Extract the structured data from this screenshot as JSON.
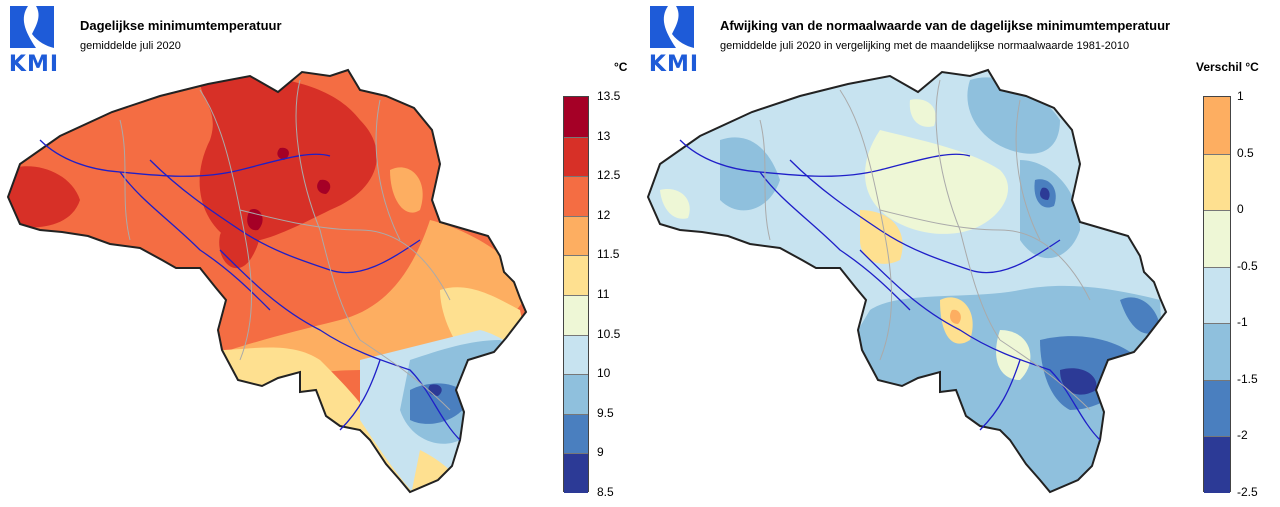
{
  "brand": {
    "logo_text": "KMI",
    "logo_color": "#1e5bd8"
  },
  "left_panel": {
    "title": "Dagelijkse minimumtemperatuur",
    "subtitle": "gemiddelde juli 2020",
    "unit": "°C",
    "legend": {
      "ticks": [
        "13.5",
        "13",
        "12.5",
        "12",
        "11.5",
        "11",
        "10.5",
        "10",
        "9.5",
        "9",
        "8.5"
      ],
      "colors": [
        "#a50026",
        "#d73027",
        "#f46d43",
        "#fdae61",
        "#fee090",
        "#eef7d6",
        "#c7e3f0",
        "#8fc0dd",
        "#4a7fbf",
        "#2c3a96"
      ]
    }
  },
  "right_panel": {
    "title": "Afwijking van de normaalwaarde van de dagelijkse minimumtemperatuur",
    "subtitle": "gemiddelde juli 2020 in vergelijking met de maandelijkse normaalwaarde 1981-2010",
    "unit": "Verschil °C",
    "legend": {
      "ticks": [
        "1",
        "0.5",
        "0",
        "-0.5",
        "-1",
        "-1.5",
        "-2",
        "-2.5"
      ],
      "colors": [
        "#fdae61",
        "#fee090",
        "#eef7d6",
        "#c7e3f0",
        "#8fc0dd",
        "#4a7fbf",
        "#2c3a96"
      ]
    }
  }
}
